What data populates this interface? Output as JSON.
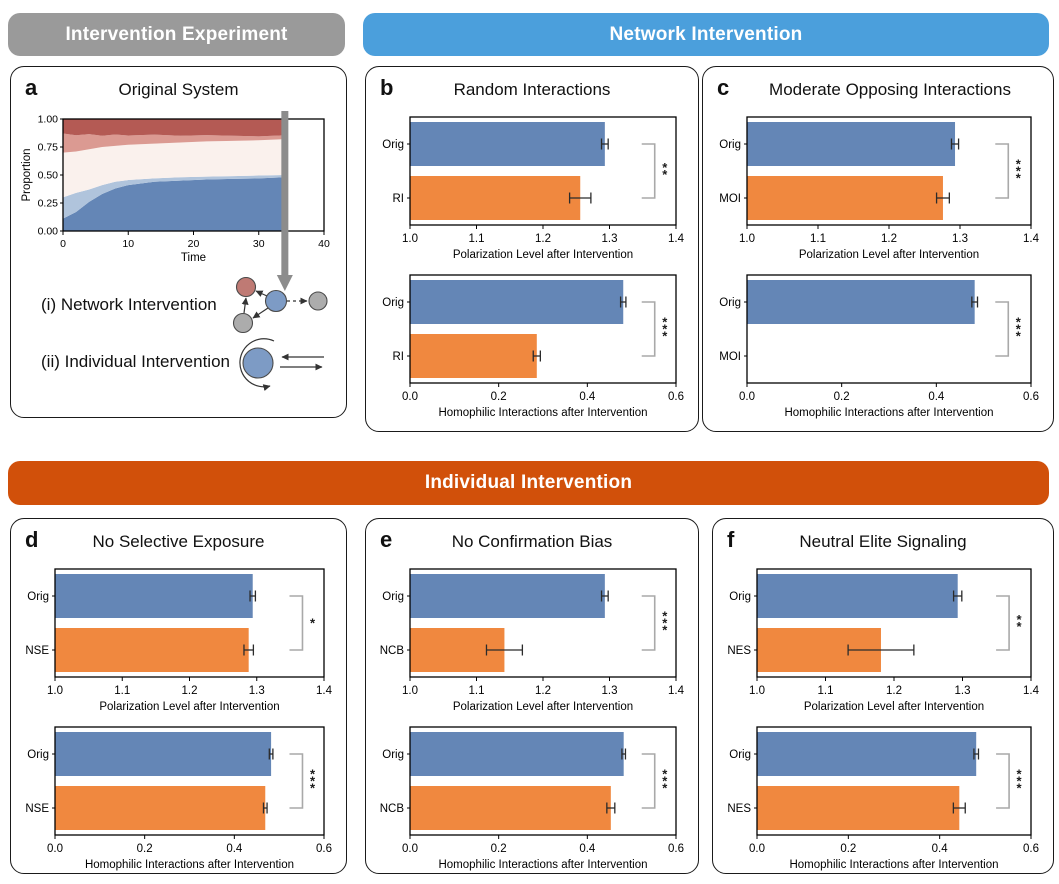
{
  "colors": {
    "header_gray": "#9A9A9A",
    "header_blue": "#4B9FDC",
    "header_orange": "#D1500A",
    "bars": [
      "#6486B6",
      "#F0883F"
    ],
    "bracket": "#A9A9A9",
    "sig": "#1a1a1a",
    "arrow_gray": "#8C8C8C",
    "node_red": "#BF7A74",
    "node_blue": "#7D9BC5",
    "node_gray": "#ACACAC",
    "area_layers": [
      "#6486B6",
      "#B0C4DC",
      "#FAF1ED",
      "#DB9A92",
      "#B45A54"
    ]
  },
  "headers": {
    "experiment": {
      "label": "Intervention Experiment"
    },
    "network": {
      "label": "Network Intervention"
    },
    "individual": {
      "label": "Individual Intervention"
    }
  },
  "panels": {
    "a": {
      "letter": "a",
      "title": "Original System",
      "items": [
        {
          "icon": "network-diagram",
          "label": "(i) Network Intervention"
        },
        {
          "icon": "self-loop-diagram",
          "label": "(ii) Individual Intervention"
        }
      ]
    },
    "b": {
      "letter": "b",
      "title": "Random Interactions"
    },
    "c": {
      "letter": "c",
      "title": "Moderate Opposing Interactions"
    },
    "d": {
      "letter": "d",
      "title": "No Selective Exposure"
    },
    "e": {
      "letter": "e",
      "title": "No Confirmation Bias"
    },
    "f": {
      "letter": "f",
      "title": "Neutral Elite Signaling"
    }
  },
  "chart_data": [
    {
      "id": "a-stacked-area",
      "type": "area",
      "title": "Original System",
      "xlabel": "Time",
      "ylabel": "Proportion",
      "xlim": [
        0,
        40
      ],
      "ylim": [
        0,
        1
      ],
      "xticks": [
        0,
        10,
        20,
        30,
        40
      ],
      "xtick_labels": [
        "0",
        "10",
        "20",
        "30",
        "40"
      ],
      "yticks": [
        0,
        0.25,
        0.5,
        0.75,
        1.0
      ],
      "ytick_labels": [
        "0.00",
        "0.25",
        "0.50",
        "0.75",
        "1.00"
      ],
      "x": [
        0,
        2,
        4,
        6,
        8,
        10,
        14,
        18,
        22,
        26,
        30,
        34
      ],
      "series": [
        {
          "name": "strong-blue",
          "cumulative_tops": [
            0.11,
            0.17,
            0.26,
            0.33,
            0.38,
            0.41,
            0.44,
            0.45,
            0.46,
            0.465,
            0.47,
            0.48
          ]
        },
        {
          "name": "lean-blue",
          "cumulative_tops": [
            0.3,
            0.34,
            0.37,
            0.41,
            0.44,
            0.455,
            0.47,
            0.48,
            0.485,
            0.49,
            0.495,
            0.5
          ]
        },
        {
          "name": "neutral",
          "cumulative_tops": [
            0.7,
            0.71,
            0.73,
            0.75,
            0.76,
            0.77,
            0.78,
            0.79,
            0.8,
            0.805,
            0.81,
            0.82
          ]
        },
        {
          "name": "lean-red",
          "cumulative_tops": [
            0.87,
            0.855,
            0.865,
            0.85,
            0.862,
            0.853,
            0.86,
            0.85,
            0.856,
            0.85,
            0.845,
            0.855
          ]
        },
        {
          "name": "strong-red",
          "cumulative_tops": [
            1,
            1,
            1,
            1,
            1,
            1,
            1,
            1,
            1,
            1,
            1,
            1
          ]
        }
      ],
      "intervention_arrow_x": 34
    },
    {
      "id": "b-polarization",
      "type": "bar",
      "orientation": "horizontal",
      "categories": [
        "Orig",
        "RI"
      ],
      "values": [
        1.293,
        1.256
      ],
      "errors": [
        0.005,
        0.016
      ],
      "xlim": [
        1.0,
        1.4
      ],
      "xticks": [
        1.0,
        1.1,
        1.2,
        1.3,
        1.4
      ],
      "xtick_labels": [
        "1.0",
        "1.1",
        "1.2",
        "1.3",
        "1.4"
      ],
      "xlabel": "Polarization Level after Intervention",
      "significance": "**"
    },
    {
      "id": "b-homophilic",
      "type": "bar",
      "orientation": "horizontal",
      "categories": [
        "Orig",
        "RI"
      ],
      "values": [
        0.481,
        0.286
      ],
      "errors": [
        0.006,
        0.008
      ],
      "xlim": [
        0,
        0.6
      ],
      "xticks": [
        0,
        0.2,
        0.4,
        0.6
      ],
      "xtick_labels": [
        "0.0",
        "0.2",
        "0.4",
        "0.6"
      ],
      "xlabel": "Homophilic Interactions after Intervention",
      "significance": "***"
    },
    {
      "id": "c-polarization",
      "type": "bar",
      "orientation": "horizontal",
      "categories": [
        "Orig",
        "MOI"
      ],
      "values": [
        1.293,
        1.276
      ],
      "errors": [
        0.005,
        0.009
      ],
      "xlim": [
        1.0,
        1.4
      ],
      "xticks": [
        1.0,
        1.1,
        1.2,
        1.3,
        1.4
      ],
      "xtick_labels": [
        "1.0",
        "1.1",
        "1.2",
        "1.3",
        "1.4"
      ],
      "xlabel": "Polarization Level after Intervention",
      "significance": "***"
    },
    {
      "id": "c-homophilic",
      "type": "bar",
      "orientation": "horizontal",
      "categories": [
        "Orig",
        "MOI"
      ],
      "values": [
        0.481,
        0.0
      ],
      "errors": [
        0.006,
        0
      ],
      "xlim": [
        0,
        0.6
      ],
      "xticks": [
        0,
        0.2,
        0.4,
        0.6
      ],
      "xtick_labels": [
        "0.0",
        "0.2",
        "0.4",
        "0.6"
      ],
      "xlabel": "Homophilic Interactions after Intervention",
      "significance": "***"
    },
    {
      "id": "d-polarization",
      "type": "bar",
      "orientation": "horizontal",
      "categories": [
        "Orig",
        "NSE"
      ],
      "values": [
        1.294,
        1.288
      ],
      "errors": [
        0.004,
        0.007
      ],
      "xlim": [
        1.0,
        1.4
      ],
      "xticks": [
        1.0,
        1.1,
        1.2,
        1.3,
        1.4
      ],
      "xtick_labels": [
        "1.0",
        "1.1",
        "1.2",
        "1.3",
        "1.4"
      ],
      "xlabel": "Polarization Level after Intervention",
      "significance": "*"
    },
    {
      "id": "d-homophilic",
      "type": "bar",
      "orientation": "horizontal",
      "categories": [
        "Orig",
        "NSE"
      ],
      "values": [
        0.482,
        0.469
      ],
      "errors": [
        0.004,
        0.004
      ],
      "xlim": [
        0,
        0.6
      ],
      "xticks": [
        0,
        0.2,
        0.4,
        0.6
      ],
      "xtick_labels": [
        "0.0",
        "0.2",
        "0.4",
        "0.6"
      ],
      "xlabel": "Homophilic Interactions after Intervention",
      "significance": "***"
    },
    {
      "id": "e-polarization",
      "type": "bar",
      "orientation": "horizontal",
      "categories": [
        "Orig",
        "NCB"
      ],
      "values": [
        1.293,
        1.142
      ],
      "errors": [
        0.005,
        0.027
      ],
      "xlim": [
        1.0,
        1.4
      ],
      "xticks": [
        1.0,
        1.1,
        1.2,
        1.3,
        1.4
      ],
      "xtick_labels": [
        "1.0",
        "1.1",
        "1.2",
        "1.3",
        "1.4"
      ],
      "xlabel": "Polarization Level after Intervention",
      "significance": "***"
    },
    {
      "id": "e-homophilic",
      "type": "bar",
      "orientation": "horizontal",
      "categories": [
        "Orig",
        "NCB"
      ],
      "values": [
        0.482,
        0.453
      ],
      "errors": [
        0.004,
        0.009
      ],
      "xlim": [
        0,
        0.6
      ],
      "xticks": [
        0,
        0.2,
        0.4,
        0.6
      ],
      "xtick_labels": [
        "0.0",
        "0.2",
        "0.4",
        "0.6"
      ],
      "xlabel": "Homophilic Interactions after Intervention",
      "significance": "***"
    },
    {
      "id": "f-polarization",
      "type": "bar",
      "orientation": "horizontal",
      "categories": [
        "Orig",
        "NES"
      ],
      "values": [
        1.293,
        1.181
      ],
      "errors": [
        0.006,
        0.048
      ],
      "xlim": [
        1.0,
        1.4
      ],
      "xticks": [
        1.0,
        1.1,
        1.2,
        1.3,
        1.4
      ],
      "xtick_labels": [
        "1.0",
        "1.1",
        "1.2",
        "1.3",
        "1.4"
      ],
      "xlabel": "Polarization Level after Intervention",
      "significance": "**"
    },
    {
      "id": "f-homophilic",
      "type": "bar",
      "orientation": "horizontal",
      "categories": [
        "Orig",
        "NES"
      ],
      "values": [
        0.48,
        0.443
      ],
      "errors": [
        0.005,
        0.013
      ],
      "xlim": [
        0,
        0.6
      ],
      "xticks": [
        0,
        0.2,
        0.4,
        0.6
      ],
      "xtick_labels": [
        "0.0",
        "0.2",
        "0.4",
        "0.6"
      ],
      "xlabel": "Homophilic Interactions after Intervention",
      "significance": "***"
    }
  ]
}
